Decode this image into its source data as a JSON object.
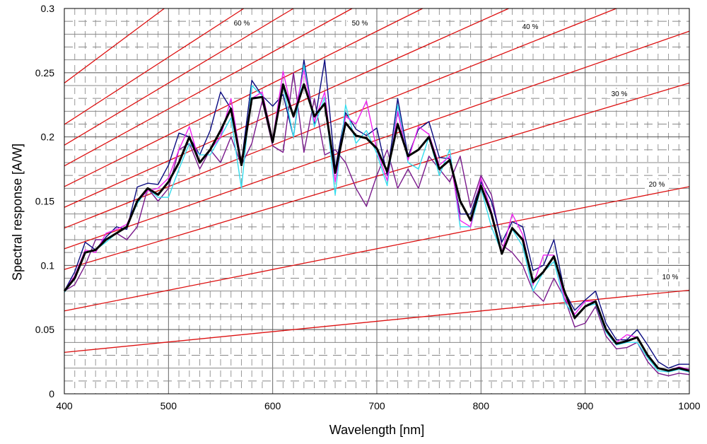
{
  "chart_data": {
    "type": "line",
    "xlabel": "Wavelength [nm]",
    "ylabel": "Spectral response [A/W]",
    "xlim": [
      400,
      1000
    ],
    "ylim": [
      0,
      0.3
    ],
    "x_ticks": [
      "400",
      "500",
      "600",
      "700",
      "800",
      "900",
      "1000"
    ],
    "y_ticks": [
      "0",
      "0.05",
      "0.1",
      "0.15",
      "0.2",
      "0.25",
      "0.3"
    ],
    "grid": "major and minor gridlines",
    "x": [
      400,
      410,
      420,
      430,
      440,
      450,
      460,
      470,
      480,
      490,
      500,
      510,
      520,
      530,
      540,
      550,
      560,
      570,
      580,
      590,
      600,
      610,
      620,
      630,
      640,
      650,
      660,
      670,
      680,
      690,
      700,
      710,
      720,
      730,
      740,
      750,
      760,
      770,
      780,
      790,
      800,
      810,
      820,
      830,
      840,
      850,
      860,
      870,
      880,
      890,
      900,
      910,
      920,
      930,
      940,
      950,
      960,
      970,
      980,
      990,
      1000
    ],
    "series": [
      {
        "color": "#000000",
        "values": [
          0.08,
          0.09,
          0.11,
          0.112,
          0.12,
          0.125,
          0.13,
          0.15,
          0.16,
          0.155,
          0.165,
          0.18,
          0.2,
          0.18,
          0.19,
          0.205,
          0.222,
          0.178,
          0.23,
          0.231,
          0.196,
          0.241,
          0.216,
          0.241,
          0.216,
          0.226,
          0.172,
          0.211,
          0.201,
          0.199,
          0.191,
          0.173,
          0.21,
          0.185,
          0.19,
          0.2,
          0.175,
          0.182,
          0.15,
          0.135,
          0.162,
          0.14,
          0.109,
          0.129,
          0.12,
          0.087,
          0.095,
          0.107,
          0.08,
          0.059,
          0.068,
          0.072,
          0.05,
          0.039,
          0.041,
          0.044,
          0.03,
          0.02,
          0.018,
          0.02,
          0.018
        ]
      },
      {
        "color": "#0a0a80",
        "values": [
          0.08,
          0.095,
          0.118,
          0.112,
          0.122,
          0.13,
          0.128,
          0.161,
          0.164,
          0.163,
          0.178,
          0.203,
          0.2,
          0.186,
          0.205,
          0.235,
          0.222,
          0.18,
          0.244,
          0.232,
          0.224,
          0.233,
          0.2,
          0.26,
          0.21,
          0.26,
          0.175,
          0.219,
          0.206,
          0.201,
          0.207,
          0.17,
          0.23,
          0.185,
          0.206,
          0.212,
          0.184,
          0.183,
          0.14,
          0.14,
          0.165,
          0.15,
          0.118,
          0.134,
          0.13,
          0.096,
          0.1,
          0.12,
          0.08,
          0.065,
          0.073,
          0.08,
          0.055,
          0.042,
          0.042,
          0.05,
          0.038,
          0.025,
          0.02,
          0.023,
          0.023
        ]
      },
      {
        "color": "#33ddee",
        "values": [
          0.079,
          0.09,
          0.11,
          0.112,
          0.118,
          0.125,
          0.13,
          0.148,
          0.16,
          0.153,
          0.153,
          0.175,
          0.195,
          0.186,
          0.186,
          0.2,
          0.215,
          0.16,
          0.24,
          0.232,
          0.196,
          0.24,
          0.2,
          0.256,
          0.208,
          0.231,
          0.155,
          0.225,
          0.195,
          0.205,
          0.187,
          0.162,
          0.225,
          0.18,
          0.175,
          0.2,
          0.17,
          0.19,
          0.13,
          0.13,
          0.16,
          0.13,
          0.11,
          0.128,
          0.115,
          0.08,
          0.095,
          0.103,
          0.072,
          0.06,
          0.068,
          0.07,
          0.048,
          0.038,
          0.04,
          0.04,
          0.028,
          0.018,
          0.017,
          0.019,
          0.017
        ]
      },
      {
        "color": "#ee22ee",
        "values": [
          0.08,
          0.092,
          0.112,
          0.11,
          0.125,
          0.128,
          0.132,
          0.15,
          0.158,
          0.16,
          0.168,
          0.19,
          0.208,
          0.18,
          0.19,
          0.2,
          0.23,
          0.18,
          0.23,
          0.235,
          0.198,
          0.251,
          0.215,
          0.252,
          0.212,
          0.235,
          0.165,
          0.216,
          0.21,
          0.228,
          0.19,
          0.166,
          0.22,
          0.182,
          0.208,
          0.202,
          0.178,
          0.185,
          0.135,
          0.13,
          0.168,
          0.142,
          0.11,
          0.14,
          0.124,
          0.085,
          0.108,
          0.108,
          0.075,
          0.062,
          0.072,
          0.072,
          0.05,
          0.04,
          0.046,
          0.044,
          0.03,
          0.02,
          0.018,
          0.021,
          0.019
        ]
      },
      {
        "color": "#7a1a8c",
        "values": [
          0.08,
          0.085,
          0.1,
          0.12,
          0.12,
          0.125,
          0.12,
          0.13,
          0.16,
          0.15,
          0.16,
          0.19,
          0.195,
          0.175,
          0.19,
          0.18,
          0.2,
          0.178,
          0.195,
          0.228,
          0.193,
          0.188,
          0.25,
          0.188,
          0.23,
          0.186,
          0.19,
          0.18,
          0.16,
          0.146,
          0.17,
          0.19,
          0.16,
          0.175,
          0.16,
          0.185,
          0.175,
          0.165,
          0.185,
          0.145,
          0.17,
          0.155,
          0.116,
          0.11,
          0.1,
          0.08,
          0.072,
          0.09,
          0.075,
          0.052,
          0.055,
          0.068,
          0.045,
          0.035,
          0.036,
          0.04,
          0.025,
          0.016,
          0.014,
          0.016,
          0.015
        ]
      }
    ],
    "efficiency_lines": [
      {
        "label": "60 %",
        "percent": 60
      },
      {
        "label": "50 %",
        "percent": 50
      },
      {
        "label": "40 %",
        "percent": 40
      },
      {
        "label": "30 %",
        "percent": 30
      },
      {
        "label": "20 %",
        "percent": 20
      },
      {
        "label": "10 %",
        "percent": 10
      }
    ],
    "efficiency_line_color": "#dd1111"
  }
}
